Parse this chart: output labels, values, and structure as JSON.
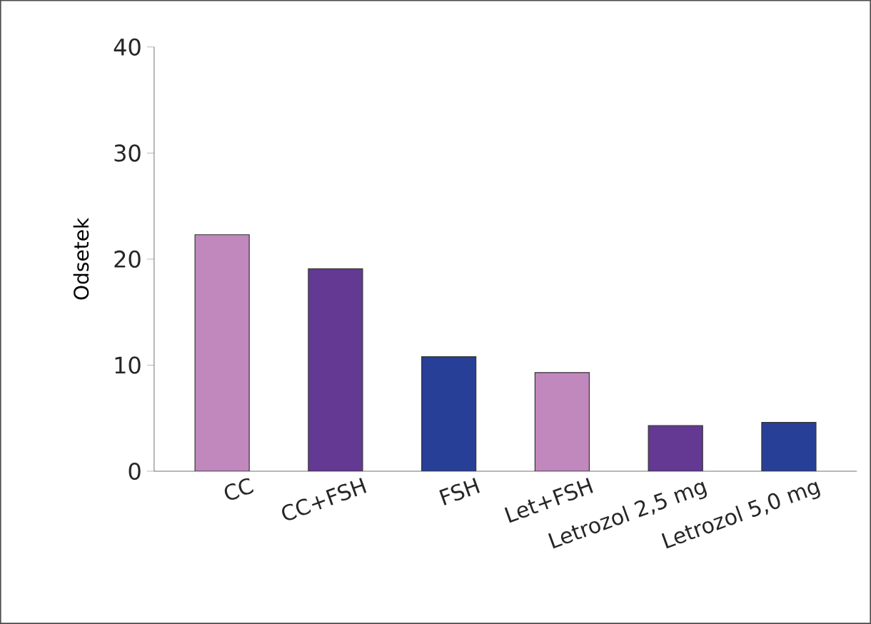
{
  "chart_data": {
    "type": "bar",
    "ylabel": "Odsetek",
    "categories": [
      "CC",
      "CC+FSH",
      "FSH",
      "Let+FSH",
      "Letrozol 2,5 mg",
      "Letrozol 5,0 mg"
    ],
    "values": [
      22.3,
      19.1,
      10.8,
      9.3,
      4.3,
      4.6
    ],
    "colors": [
      "#c088bc",
      "#633993",
      "#283f98",
      "#c088bc",
      "#633993",
      "#283f98"
    ],
    "ylim": [
      0,
      40
    ],
    "yticks": [
      0,
      10,
      20,
      30,
      40
    ]
  }
}
